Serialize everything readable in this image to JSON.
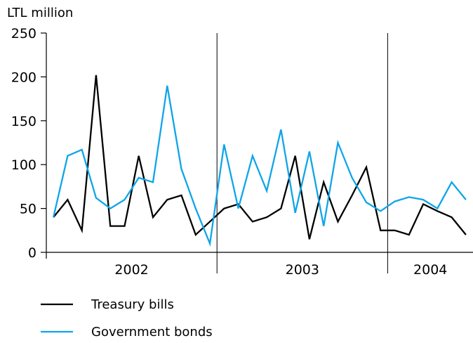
{
  "chart_data": {
    "type": "line",
    "ylabel": "LTL million",
    "ylim": [
      0,
      250
    ],
    "yticks": [
      0,
      50,
      100,
      150,
      200,
      250
    ],
    "grid": false,
    "legend_position": "bottom-left",
    "x_range": [
      0,
      30
    ],
    "year_groups": [
      {
        "label": "2002",
        "start": 0,
        "end": 12
      },
      {
        "label": "2003",
        "start": 12,
        "end": 24
      },
      {
        "label": "2004",
        "start": 24,
        "end": 30
      }
    ],
    "year_dividers": [
      12,
      24
    ],
    "x": [
      0.5,
      1.5,
      2.5,
      3.5,
      4.5,
      5.5,
      6.5,
      7.5,
      8.5,
      9.5,
      10.5,
      11.5,
      12.5,
      13.5,
      14.5,
      15.5,
      16.5,
      17.5,
      18.5,
      19.5,
      20.5,
      21.5,
      22.5,
      23.5,
      24.5,
      25.5,
      26.5,
      27.5,
      28.5,
      29.5
    ],
    "series": [
      {
        "name": "Treasury bills",
        "color": "#000000",
        "values": [
          40,
          60,
          25,
          202,
          30,
          30,
          110,
          40,
          60,
          65,
          20,
          35,
          50,
          55,
          35,
          40,
          50,
          110,
          15,
          80,
          35,
          65,
          97,
          25,
          25,
          20,
          55,
          47,
          40,
          20
        ]
      },
      {
        "name": "Government bonds",
        "color": "#0ea5e9",
        "values": [
          40,
          110,
          117,
          62,
          50,
          60,
          85,
          80,
          190,
          95,
          50,
          10,
          123,
          50,
          110,
          70,
          140,
          45,
          115,
          30,
          125,
          85,
          57,
          47,
          58,
          63,
          60,
          50,
          80,
          60
        ]
      }
    ]
  }
}
